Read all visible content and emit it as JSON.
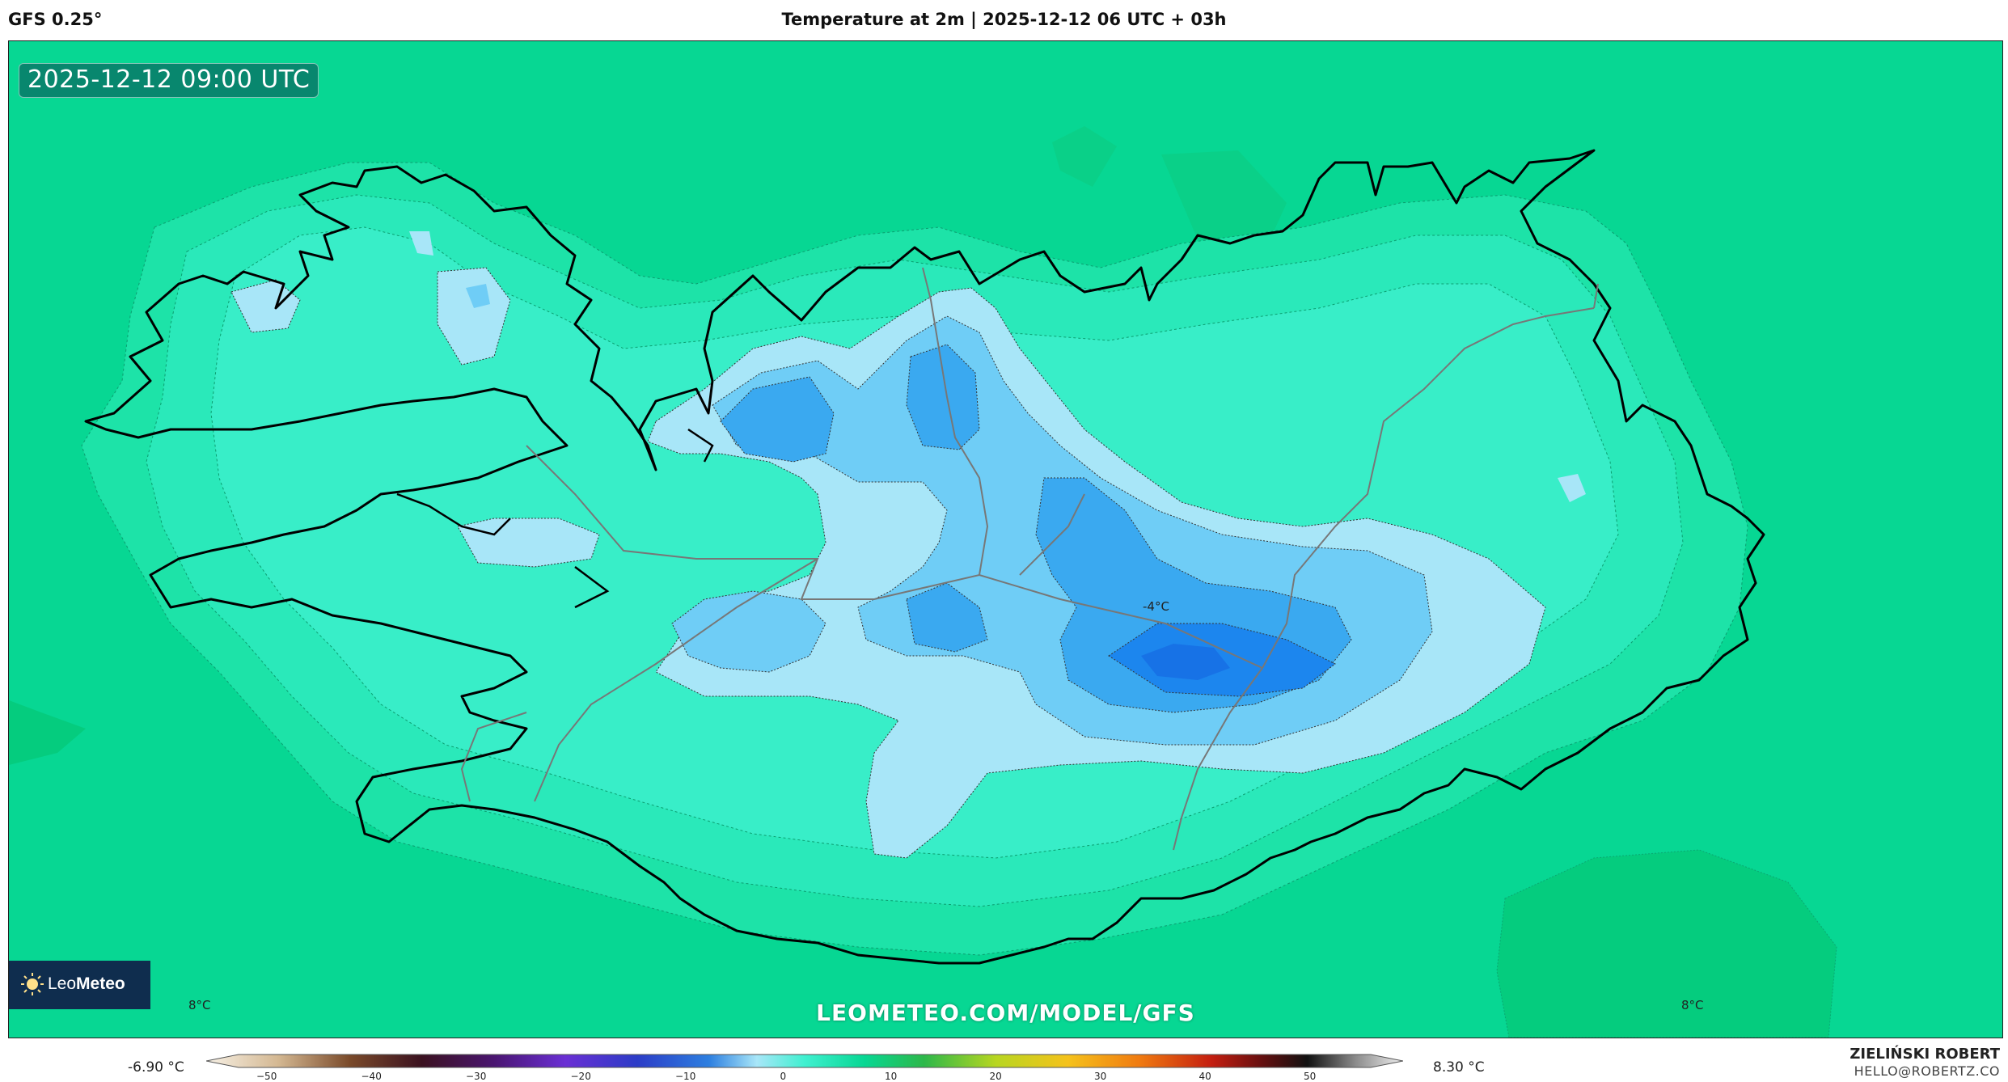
{
  "header": {
    "model": "GFS 0.25°",
    "title": "Temperature at 2m | 2025-12-12 06 UTC + 03h"
  },
  "map": {
    "valid_time": "2025-12-12 09:00 UTC",
    "watermark": "LEOMETEO.COM/MODEL/GFS",
    "labels": {
      "center": "-4°C",
      "bottom_left": "8°C",
      "bottom_right": "8°C"
    },
    "colors": {
      "ocean": "#07d793",
      "warm_patch": "#05cc7e",
      "land_warm": "#25e8b5",
      "land_mid": "#3ff0d0",
      "cold_light": "#a8e6f8",
      "cold_mid": "#6fcdf6",
      "cold_deep": "#3aa9f0",
      "cold_core": "#1c86ee"
    }
  },
  "logo": {
    "brand_light": "Leo",
    "brand_bold": "Meteo",
    "icon": "sun-icon"
  },
  "colorbar": {
    "min_label": "-6.90 °C",
    "max_label": "8.30 °C",
    "ticks": [
      "−50",
      "−40",
      "−30",
      "−20",
      "−10",
      "0",
      "10",
      "20",
      "30",
      "40",
      "50"
    ]
  },
  "footer": {
    "author": "ZIELIŃSKI ROBERT",
    "email": "HELLO@ROBERTZ.CO"
  }
}
